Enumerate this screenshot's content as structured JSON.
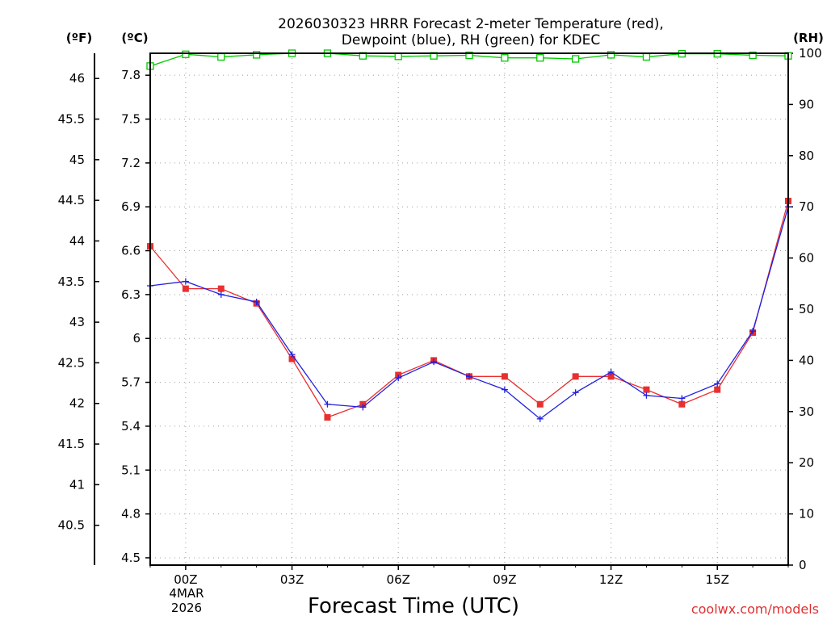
{
  "chart_data": {
    "type": "line",
    "title_line1": "2026030323 HRRR Forecast 2-meter Temperature (red),",
    "title_line2": "Dewpoint (blue), RH (green) for KDEC",
    "xlabel": "Forecast Time (UTC)",
    "left_unit_f": "(ºF)",
    "left_unit_c": "(ºC)",
    "right_unit": "(RH)",
    "date_label_1": "4MAR",
    "date_label_2": "2026",
    "watermark": "coolwx.com/models",
    "x_range": [
      -1,
      17
    ],
    "y_range_c": [
      4.45,
      7.95
    ],
    "rh_range": [
      0,
      100
    ],
    "x_ticks": [
      {
        "x": 0,
        "label": "00Z"
      },
      {
        "x": 3,
        "label": "03Z"
      },
      {
        "x": 6,
        "label": "06Z"
      },
      {
        "x": 9,
        "label": "09Z"
      },
      {
        "x": 12,
        "label": "12Z"
      },
      {
        "x": 15,
        "label": "15Z"
      }
    ],
    "c_ticks": [
      "4.5",
      "4.8",
      "5.1",
      "5.4",
      "5.7",
      "6",
      "6.3",
      "6.6",
      "6.9",
      "7.2",
      "7.5",
      "7.8"
    ],
    "f_ticks": [
      "40.5",
      "41",
      "41.5",
      "42",
      "42.5",
      "43",
      "43.5",
      "44",
      "44.5",
      "45",
      "45.5",
      "46"
    ],
    "rh_ticks": [
      "0",
      "10",
      "20",
      "30",
      "40",
      "50",
      "60",
      "70",
      "80",
      "90",
      "100"
    ],
    "x": [
      -1,
      0,
      1,
      2,
      3,
      4,
      5,
      6,
      7,
      8,
      9,
      10,
      11,
      12,
      13,
      14,
      15,
      16,
      17
    ],
    "series": [
      {
        "name": "Temperature",
        "color": "#e83030",
        "marker": "square",
        "values": [
          6.63,
          6.34,
          6.34,
          6.24,
          5.86,
          5.46,
          5.55,
          5.75,
          5.85,
          5.74,
          5.74,
          5.55,
          5.74,
          5.74,
          5.65,
          5.55,
          5.65,
          6.04,
          6.94
        ]
      },
      {
        "name": "Dewpoint",
        "color": "#2020e0",
        "marker": "plus",
        "values": [
          6.36,
          6.39,
          6.3,
          6.25,
          5.89,
          5.55,
          5.53,
          5.73,
          5.84,
          5.74,
          5.65,
          5.45,
          5.63,
          5.77,
          5.61,
          5.59,
          5.69,
          6.05,
          6.9
        ]
      },
      {
        "name": "RH",
        "color": "#00c800",
        "marker": "open-square",
        "axis": "rh",
        "values": [
          97.5,
          99.8,
          99.3,
          99.7,
          100,
          100,
          99.5,
          99.4,
          99.5,
          99.6,
          99.1,
          99.1,
          98.9,
          99.7,
          99.3,
          99.9,
          99.9,
          99.6,
          99.5
        ]
      }
    ]
  }
}
